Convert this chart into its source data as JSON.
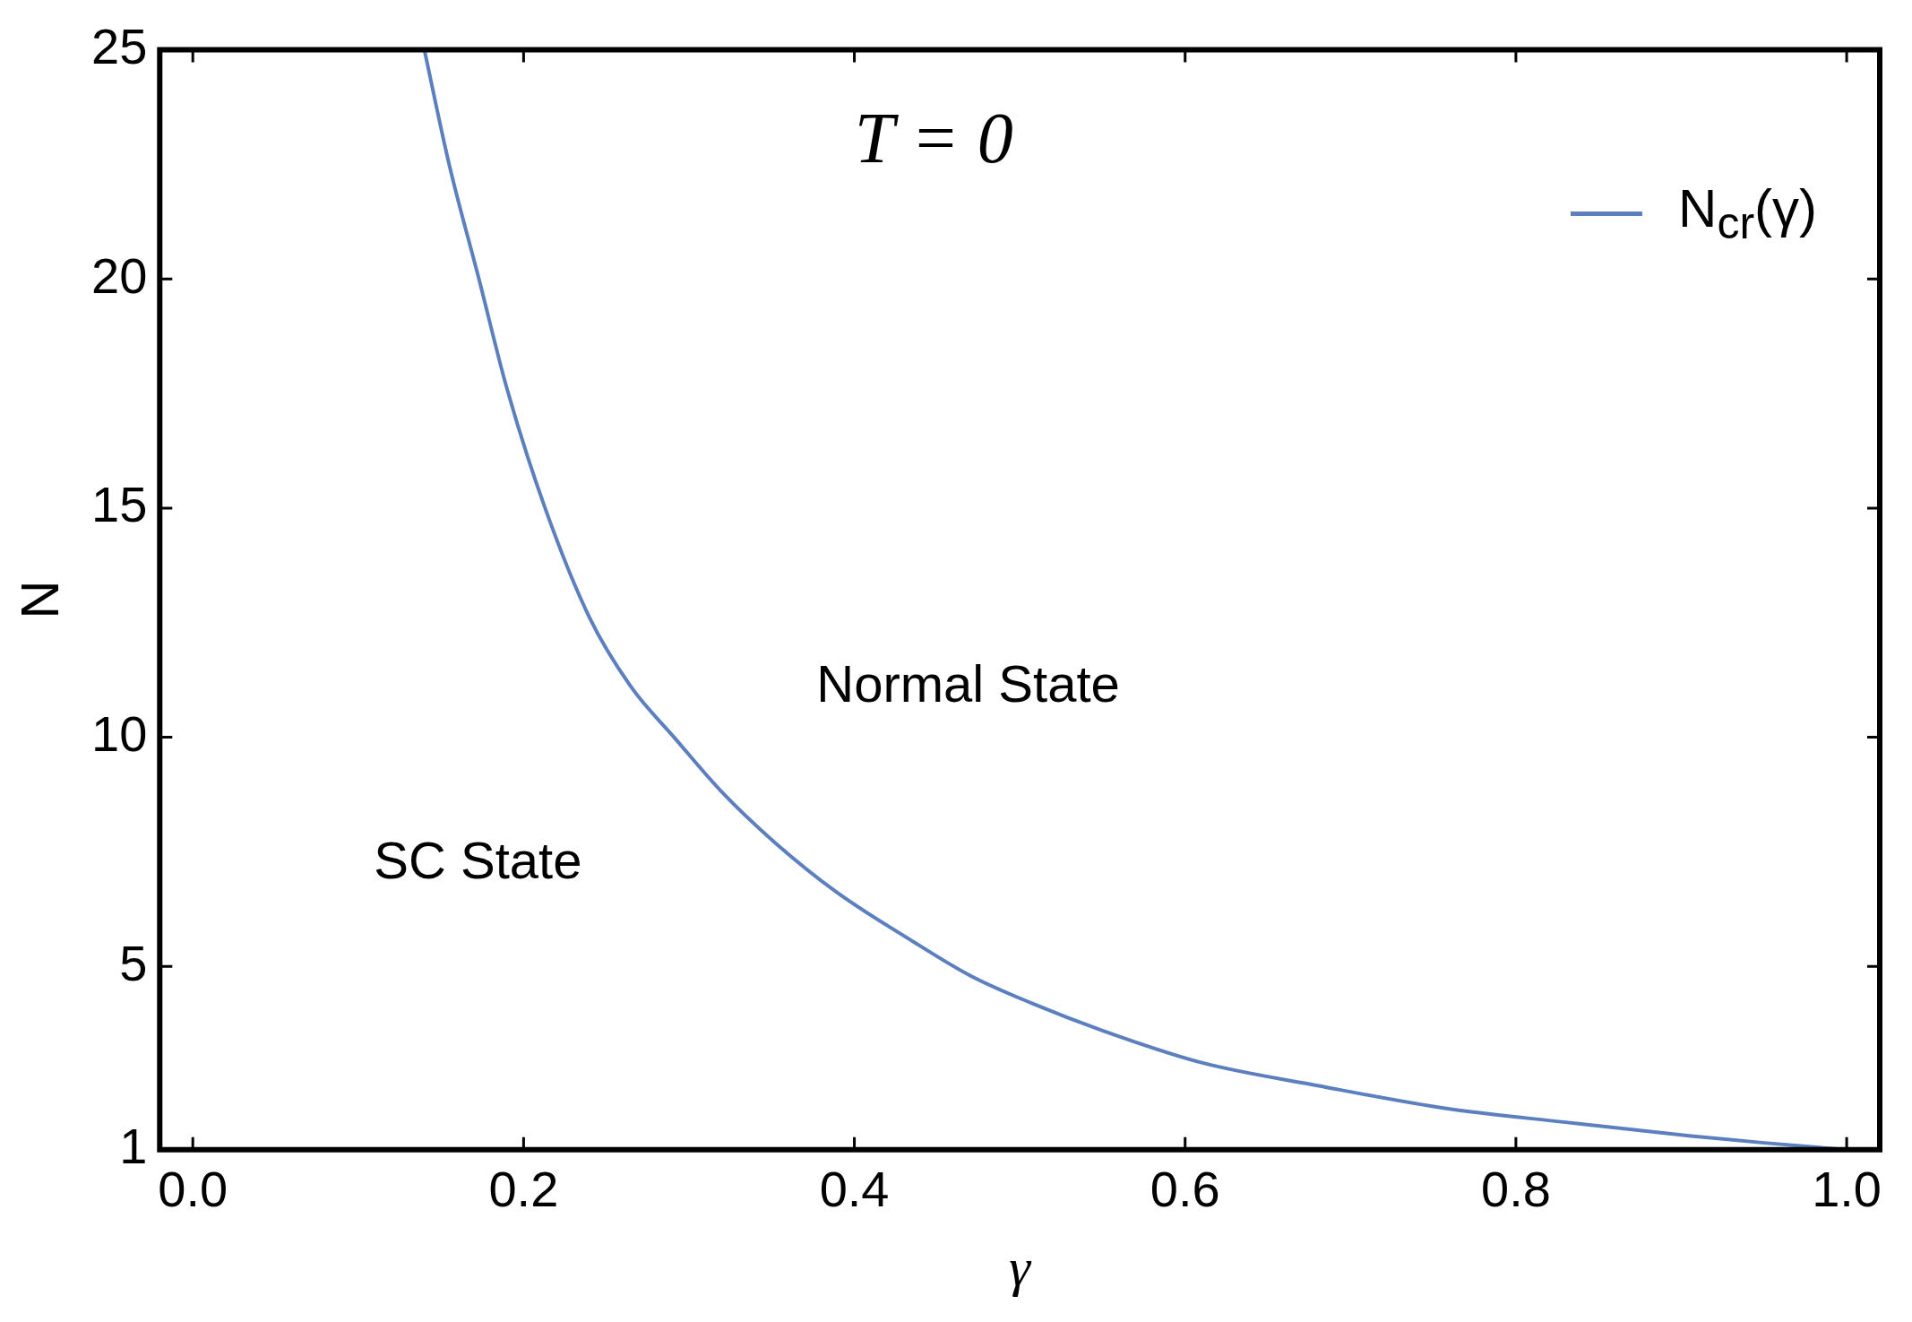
{
  "chart_data": {
    "type": "line",
    "xlabel": "γ",
    "ylabel": "N",
    "xlim": [
      -0.02,
      1.02
    ],
    "xticks": [
      {
        "value": 0,
        "label": "0.0"
      },
      {
        "value": 0.2,
        "label": "0.2"
      },
      {
        "value": 0.4,
        "label": "0.4"
      },
      {
        "value": 0.6,
        "label": "0.6"
      },
      {
        "value": 0.8,
        "label": "0.8"
      },
      {
        "value": 1,
        "label": "1.0"
      }
    ],
    "ylim": [
      1,
      25
    ],
    "yticks": [
      1,
      5,
      10,
      15,
      20,
      25
    ],
    "series": [
      {
        "name": "N$_{cr}$(γ)",
        "color": "#5b7fbf",
        "x": [
          0.14,
          0.155,
          0.173,
          0.19,
          0.213,
          0.24,
          0.265,
          0.291,
          0.32,
          0.352,
          0.39,
          0.433,
          0.47,
          0.507,
          0.55,
          0.61,
          0.68,
          0.758,
          0.83,
          0.906,
          0.95,
          1.0
        ],
        "values": [
          25,
          22.5,
          20,
          17.6,
          15,
          12.6,
          11.1,
          10,
          8.8,
          7.7,
          6.6,
          5.6,
          4.8,
          4.2,
          3.6,
          2.9,
          2.4,
          1.9,
          1.6,
          1.3,
          1.15,
          1
        ]
      }
    ],
    "annotations": [
      "T = 0",
      "Normal State",
      "SC State"
    ],
    "legend": "top right",
    "grid": false,
    "marker": "none",
    "line_style": "solid"
  }
}
